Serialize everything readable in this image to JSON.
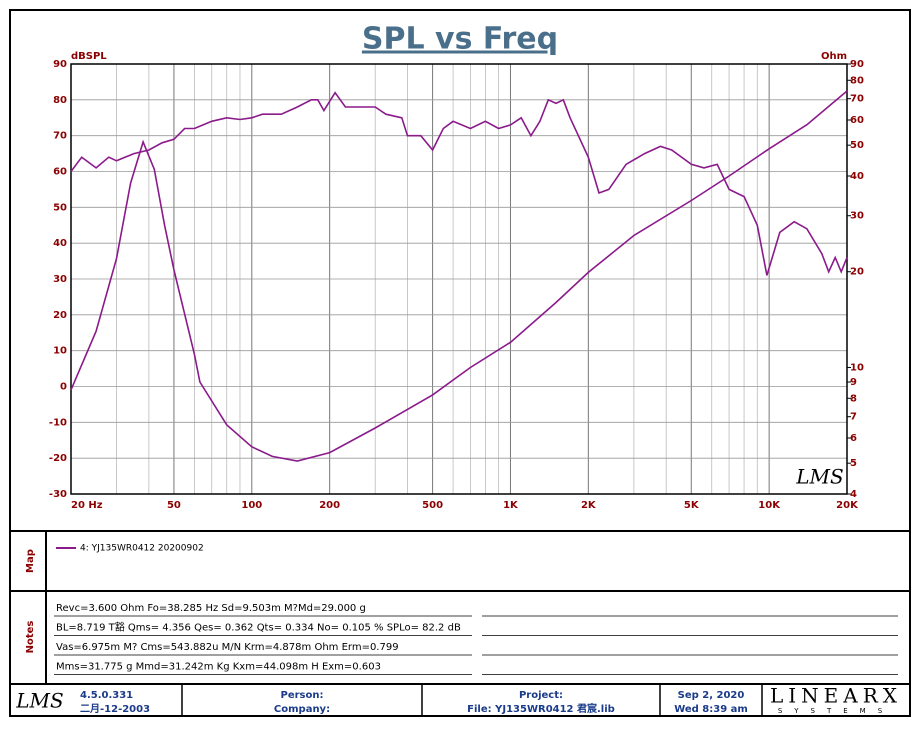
{
  "chart_data": {
    "type": "line",
    "title": "SPL vs Freq",
    "y_label": "dBSPL",
    "y2_label": "Ohm",
    "watermark": "LMS",
    "xscale": "log",
    "xlim": [
      20,
      20000
    ],
    "xticks": [
      {
        "value": 20,
        "label": "20  Hz"
      },
      50,
      100,
      200,
      500,
      {
        "value": 1000,
        "label": "1K"
      },
      {
        "value": 2000,
        "label": "2K"
      },
      {
        "value": 5000,
        "label": "5K"
      },
      {
        "value": 10000,
        "label": "10K"
      },
      {
        "value": 20000,
        "label": "20K"
      }
    ],
    "x_minor_ticks": [
      30,
      40,
      60,
      70,
      80,
      90,
      300,
      400,
      600,
      700,
      800,
      900,
      3000,
      4000,
      6000,
      7000,
      8000,
      9000
    ],
    "ylim": [
      -30,
      90
    ],
    "yticks": [
      -30,
      -20,
      -10,
      0,
      10,
      20,
      30,
      40,
      50,
      60,
      70,
      80,
      90
    ],
    "y2scale": "log",
    "y2lim": [
      4,
      90
    ],
    "y2ticks": [
      4,
      5,
      6,
      7,
      8,
      9,
      10,
      20,
      30,
      40,
      50,
      60,
      70,
      80,
      90
    ],
    "grid": true,
    "legend": "top-left",
    "series": [
      {
        "name": "4: YJ135WR0412 20200902",
        "color": "#8b1a8b",
        "x": [
          20,
          22,
          25,
          28,
          30,
          35,
          40,
          45,
          50,
          55,
          60,
          70,
          80,
          90,
          100,
          110,
          130,
          150,
          170,
          180,
          190,
          210,
          230,
          260,
          300,
          330,
          380,
          400,
          450,
          500,
          550,
          600,
          700,
          800,
          900,
          1000,
          1100,
          1200,
          1300,
          1400,
          1500,
          1600,
          1700,
          2000,
          2200,
          2400,
          2800,
          3300,
          3800,
          4200,
          5000,
          5600,
          6300,
          7000,
          8000,
          9000,
          9800,
          11000,
          12500,
          14000,
          16000,
          17000,
          18000,
          19000,
          20000
        ],
        "values": [
          60,
          64,
          61,
          64,
          63,
          65,
          66,
          68,
          69,
          72,
          72,
          74,
          75,
          74.5,
          75,
          76,
          76,
          78,
          80,
          80,
          77,
          82,
          78,
          78,
          78,
          76,
          75,
          70,
          70,
          66,
          72,
          74,
          72,
          74,
          72,
          73,
          75,
          70,
          74,
          80,
          79,
          80,
          75,
          64,
          54,
          55,
          62,
          65,
          67,
          66,
          62,
          61,
          62,
          55,
          53,
          45,
          31,
          43,
          46,
          44,
          37,
          32,
          36,
          32,
          36
        ]
      },
      {
        "axis": "y2",
        "color": "#8b1a8b",
        "x": [
          20,
          25,
          30,
          34,
          38,
          42,
          46,
          50,
          60,
          63,
          80,
          100,
          120,
          150,
          200,
          300,
          500,
          700,
          1000,
          1500,
          2000,
          3000,
          5000,
          7000,
          10000,
          14000,
          20000
        ],
        "values": [
          8.5,
          13,
          22,
          38,
          51.2,
          42,
          28,
          20.3,
          11,
          9.0,
          6.6,
          5.63,
          5.25,
          5.08,
          5.4,
          6.45,
          8.2,
          10,
          12,
          16,
          19.9,
          26,
          33.5,
          40,
          48.7,
          58,
          74
        ]
      }
    ]
  },
  "map": {
    "label": "Map"
  },
  "notes": {
    "label": "Notes",
    "lines": [
      "Revc=3.600 Ohm  Fo=38.285 Hz  Sd=9.503m M?Md=29.000 g",
      "BL=8.719 T豁  Qms= 4.356  Qes= 0.362  Qts= 0.334  No= 0.105 %  SPLo= 82.2 dB",
      "Vas=6.975m M? Cms=543.882u M/N  Krm=4.878m Ohm  Erm=0.799",
      "Mms=31.775 g  Mmd=31.242m Kg  Kxm=44.098m H  Exm=0.603"
    ]
  },
  "footer": {
    "logo": "LMS",
    "version": "4.5.0.331",
    "date": "二月-12-2003",
    "person": "Person:",
    "company": "Company:",
    "project": "Project:",
    "file": "File: YJ135WR0412 君宸.lib",
    "print_date": "Sep  2, 2020",
    "print_time": "Wed  8:39 am",
    "brand": "LINEARX",
    "brand_sub": "SYSTEMS"
  }
}
